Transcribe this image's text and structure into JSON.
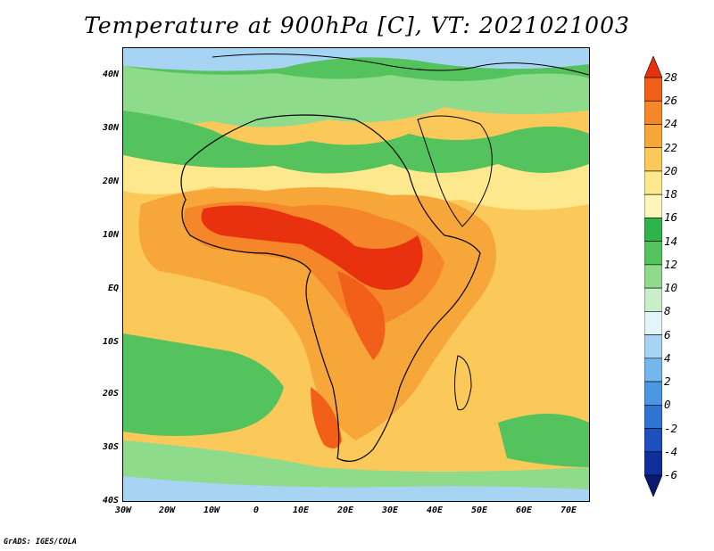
{
  "title": "Temperature at 900hPa [C], VT: 2021021003",
  "credit": "GrADS: IGES/COLA",
  "map": {
    "latitude_labels": [
      "40N",
      "30N",
      "20N",
      "10N",
      "EQ",
      "10S",
      "20S",
      "30S",
      "40S"
    ],
    "longitude_labels": [
      "30W",
      "20W",
      "10W",
      "0",
      "10E",
      "20E",
      "30E",
      "40E",
      "50E",
      "60E",
      "70E"
    ],
    "lat_range": [
      -40,
      45
    ],
    "lon_range": [
      -30,
      75
    ]
  },
  "colorbar": {
    "labels": [
      "28",
      "26",
      "24",
      "22",
      "20",
      "18",
      "16",
      "14",
      "12",
      "10",
      "8",
      "6",
      "4",
      "2",
      "0",
      "-2",
      "-4",
      "-6"
    ],
    "colors": [
      "#e8320f",
      "#f25f18",
      "#f5872a",
      "#f7a63a",
      "#fbc95a",
      "#fde88d",
      "#fdf6bb",
      "#2fb34a",
      "#55c35d",
      "#8edb8b",
      "#c8f0c8",
      "#e3f5fb",
      "#a7d4f3",
      "#74b7ec",
      "#4a97e2",
      "#2f74d3",
      "#1d4fbf",
      "#0f2f9c",
      "#08196f"
    ]
  }
}
